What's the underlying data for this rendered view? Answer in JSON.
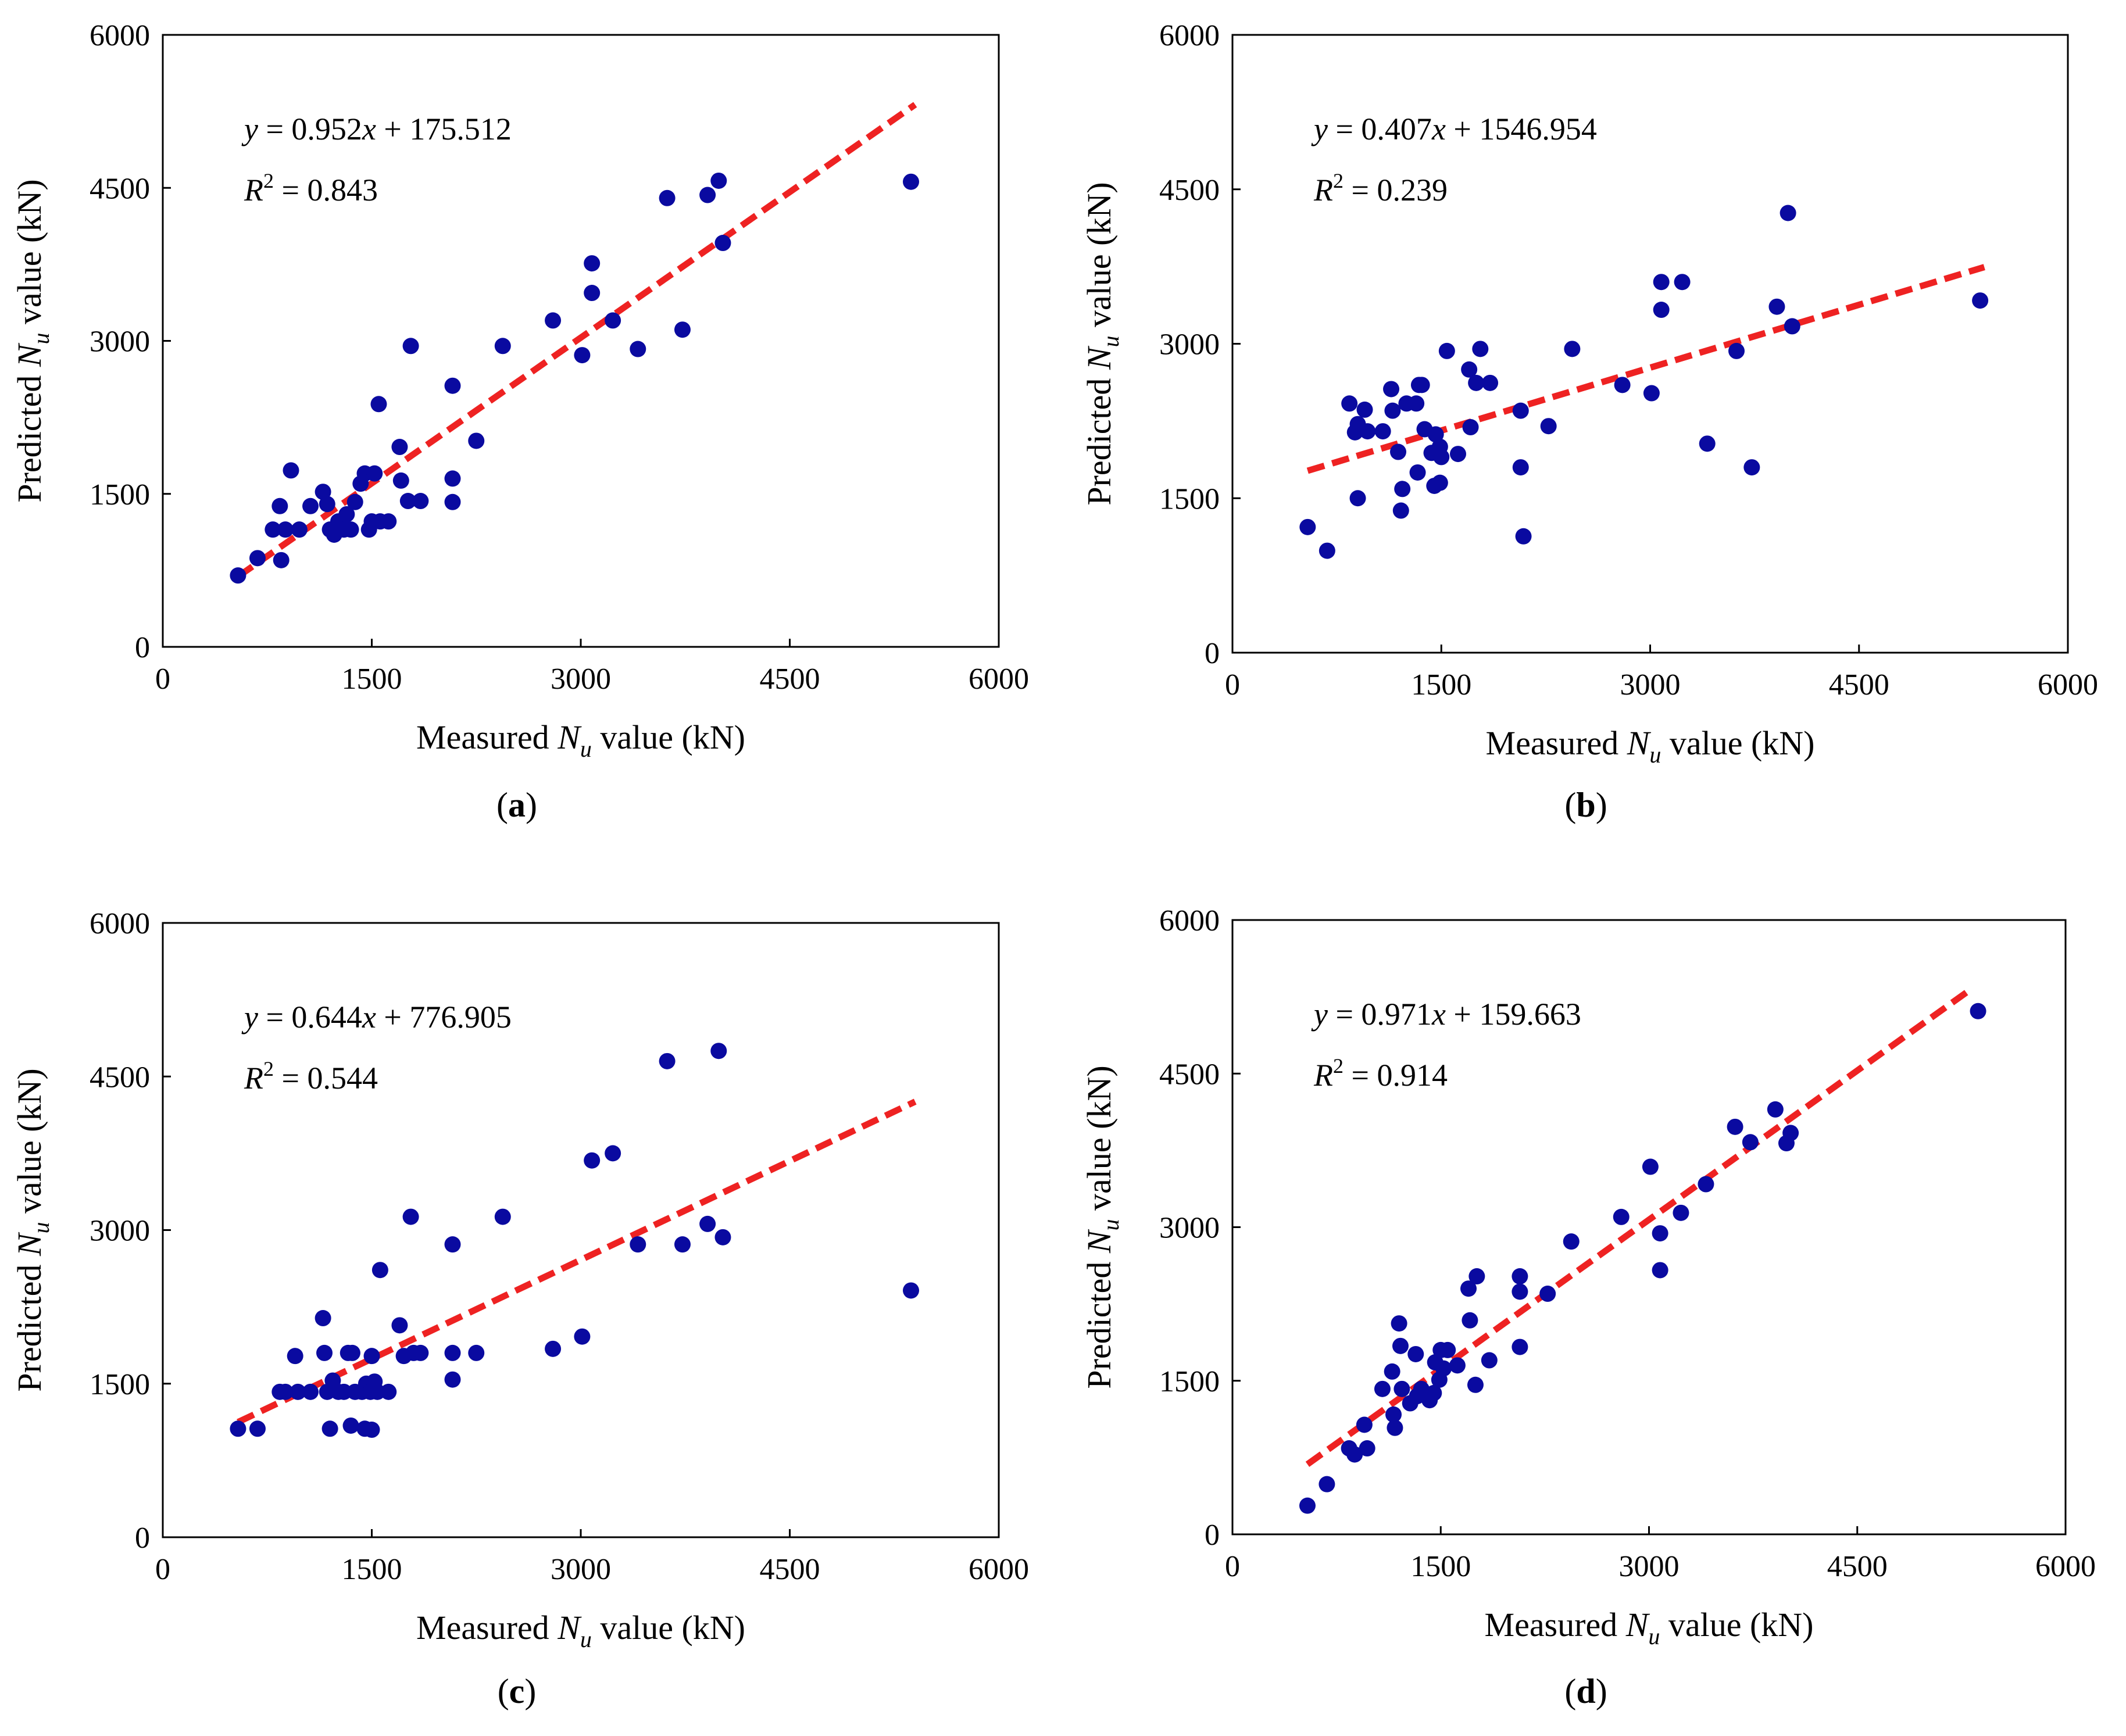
{
  "chart_data": [
    {
      "type": "scatter",
      "panel": "(a)",
      "panel_letter": "a",
      "xlabel_prefix": "Measured ",
      "ylabel_prefix": "Predicted ",
      "var_main": "N",
      "var_sub": "u",
      "label_suffix": " value (kN)",
      "xlim": [
        0,
        6000
      ],
      "ylim": [
        0,
        6000
      ],
      "xticks": [
        "0",
        "1500",
        "3000",
        "4500",
        "6000"
      ],
      "yticks": [
        "0",
        "1500",
        "3000",
        "4500",
        "6000"
      ],
      "grid": false,
      "marker_color": "#0a0aa0",
      "line_color": "#ee2222",
      "equation": {
        "y": "y",
        "eq": " = 0.952",
        "x": "x",
        "rest": " + 175.512"
      },
      "r2": {
        "R": "R",
        "sup": "2",
        "val": " = 0.843"
      },
      "fit": {
        "slope": 0.952,
        "intercept": 175.512,
        "x_range": [
          540,
          5400
        ]
      },
      "points": [
        [
          540,
          700
        ],
        [
          680,
          870
        ],
        [
          790,
          1150
        ],
        [
          840,
          1380
        ],
        [
          850,
          850
        ],
        [
          880,
          1150
        ],
        [
          920,
          1730
        ],
        [
          980,
          1150
        ],
        [
          1060,
          1380
        ],
        [
          1150,
          1520
        ],
        [
          1180,
          1400
        ],
        [
          1200,
          1150
        ],
        [
          1230,
          1100
        ],
        [
          1260,
          1230
        ],
        [
          1300,
          1150
        ],
        [
          1320,
          1300
        ],
        [
          1350,
          1150
        ],
        [
          1380,
          1420
        ],
        [
          1420,
          1600
        ],
        [
          1450,
          1700
        ],
        [
          1480,
          1150
        ],
        [
          1500,
          1230
        ],
        [
          1520,
          1700
        ],
        [
          1550,
          2380
        ],
        [
          1560,
          1230
        ],
        [
          1620,
          1230
        ],
        [
          1700,
          1960
        ],
        [
          1710,
          1630
        ],
        [
          1760,
          1430
        ],
        [
          1780,
          2950
        ],
        [
          1850,
          1430
        ],
        [
          2080,
          1650
        ],
        [
          2080,
          1420
        ],
        [
          2080,
          2560
        ],
        [
          2250,
          2020
        ],
        [
          2440,
          2950
        ],
        [
          2800,
          3200
        ],
        [
          3010,
          2860
        ],
        [
          3080,
          3470
        ],
        [
          3080,
          3760
        ],
        [
          3230,
          3200
        ],
        [
          3410,
          2920
        ],
        [
          3620,
          4400
        ],
        [
          3730,
          3110
        ],
        [
          3910,
          4430
        ],
        [
          3990,
          4570
        ],
        [
          4020,
          3960
        ],
        [
          5370,
          4560
        ]
      ]
    },
    {
      "type": "scatter",
      "panel": "(b)",
      "panel_letter": "b",
      "xlabel_prefix": "Measured ",
      "ylabel_prefix": "Predicted ",
      "var_main": "N",
      "var_sub": "u",
      "label_suffix": " value (kN)",
      "xlim": [
        0,
        6000
      ],
      "ylim": [
        0,
        6000
      ],
      "xticks": [
        "0",
        "1500",
        "3000",
        "4500",
        "6000"
      ],
      "yticks": [
        "0",
        "1500",
        "3000",
        "4500",
        "6000"
      ],
      "grid": false,
      "marker_color": "#0a0aa0",
      "line_color": "#ee2222",
      "equation": {
        "y": "y",
        "eq": " = 0.407",
        "x": "x",
        "rest": " + 1546.954"
      },
      "r2": {
        "R": "R",
        "sup": "2",
        "val": " = 0.239"
      },
      "fit": {
        "slope": 0.407,
        "intercept": 1546.954,
        "x_range": [
          540,
          5400
        ]
      },
      "points": [
        [
          540,
          1220
        ],
        [
          680,
          990
        ],
        [
          840,
          2420
        ],
        [
          880,
          2140
        ],
        [
          900,
          2220
        ],
        [
          900,
          1500
        ],
        [
          950,
          2360
        ],
        [
          970,
          2150
        ],
        [
          1080,
          2150
        ],
        [
          1140,
          2560
        ],
        [
          1150,
          2350
        ],
        [
          1190,
          1950
        ],
        [
          1210,
          1380
        ],
        [
          1220,
          1590
        ],
        [
          1250,
          2420
        ],
        [
          1320,
          2420
        ],
        [
          1330,
          1750
        ],
        [
          1340,
          2600
        ],
        [
          1360,
          2600
        ],
        [
          1380,
          2170
        ],
        [
          1430,
          1940
        ],
        [
          1450,
          1620
        ],
        [
          1460,
          2120
        ],
        [
          1490,
          1650
        ],
        [
          1490,
          2000
        ],
        [
          1500,
          1900
        ],
        [
          1540,
          2930
        ],
        [
          1620,
          1930
        ],
        [
          1700,
          2750
        ],
        [
          1710,
          2190
        ],
        [
          1750,
          2620
        ],
        [
          1780,
          2950
        ],
        [
          1850,
          2620
        ],
        [
          2070,
          2350
        ],
        [
          2070,
          1800
        ],
        [
          2090,
          1130
        ],
        [
          2270,
          2200
        ],
        [
          2440,
          2950
        ],
        [
          2800,
          2600
        ],
        [
          3010,
          2520
        ],
        [
          3080,
          3330
        ],
        [
          3080,
          3600
        ],
        [
          3230,
          3600
        ],
        [
          3410,
          2030
        ],
        [
          3620,
          2930
        ],
        [
          3730,
          1800
        ],
        [
          3910,
          3360
        ],
        [
          3990,
          4270
        ],
        [
          4020,
          3170
        ],
        [
          5370,
          3420
        ]
      ]
    },
    {
      "type": "scatter",
      "panel": "(c)",
      "panel_letter": "c",
      "xlabel_prefix": "Measured ",
      "ylabel_prefix": "Predicted ",
      "var_main": "N",
      "var_sub": "u",
      "label_suffix": " value (kN)",
      "xlim": [
        0,
        6000
      ],
      "ylim": [
        0,
        6000
      ],
      "xticks": [
        "0",
        "1500",
        "3000",
        "4500",
        "6000"
      ],
      "yticks": [
        "0",
        "1500",
        "3000",
        "4500",
        "6000"
      ],
      "grid": false,
      "marker_color": "#0a0aa0",
      "line_color": "#ee2222",
      "equation": {
        "y": "y",
        "eq": " = 0.644",
        "x": "x",
        "rest": " + 776.905"
      },
      "r2": {
        "R": "R",
        "sup": "2",
        "val": " = 0.544"
      },
      "fit": {
        "slope": 0.644,
        "intercept": 776.905,
        "x_range": [
          540,
          5400
        ]
      },
      "points": [
        [
          540,
          1060
        ],
        [
          680,
          1060
        ],
        [
          840,
          1420
        ],
        [
          880,
          1420
        ],
        [
          950,
          1770
        ],
        [
          970,
          1420
        ],
        [
          1060,
          1420
        ],
        [
          1150,
          2140
        ],
        [
          1160,
          1800
        ],
        [
          1180,
          1420
        ],
        [
          1200,
          1060
        ],
        [
          1220,
          1530
        ],
        [
          1260,
          1420
        ],
        [
          1300,
          1420
        ],
        [
          1330,
          1800
        ],
        [
          1350,
          1090
        ],
        [
          1360,
          1800
        ],
        [
          1380,
          1420
        ],
        [
          1430,
          1420
        ],
        [
          1450,
          1060
        ],
        [
          1460,
          1500
        ],
        [
          1490,
          1420
        ],
        [
          1500,
          1050
        ],
        [
          1500,
          1770
        ],
        [
          1520,
          1520
        ],
        [
          1540,
          1420
        ],
        [
          1560,
          2610
        ],
        [
          1620,
          1420
        ],
        [
          1700,
          2070
        ],
        [
          1730,
          1770
        ],
        [
          1780,
          3130
        ],
        [
          1800,
          1800
        ],
        [
          1850,
          1800
        ],
        [
          2080,
          2860
        ],
        [
          2080,
          1800
        ],
        [
          2080,
          1540
        ],
        [
          2250,
          1800
        ],
        [
          2440,
          3130
        ],
        [
          2800,
          1840
        ],
        [
          3010,
          1960
        ],
        [
          3080,
          3680
        ],
        [
          3230,
          3750
        ],
        [
          3410,
          2860
        ],
        [
          3620,
          4650
        ],
        [
          3730,
          2860
        ],
        [
          3910,
          3060
        ],
        [
          3990,
          4750
        ],
        [
          4020,
          2930
        ],
        [
          5370,
          2410
        ]
      ]
    },
    {
      "type": "scatter",
      "panel": "(d)",
      "panel_letter": "d",
      "xlabel_prefix": "Measured ",
      "ylabel_prefix": "Predicted ",
      "var_main": "N",
      "var_sub": "u",
      "label_suffix": " value (kN)",
      "xlim": [
        0,
        6000
      ],
      "ylim": [
        0,
        6000
      ],
      "xticks": [
        "0",
        "1500",
        "3000",
        "4500",
        "6000"
      ],
      "yticks": [
        "0",
        "1500",
        "3000",
        "4500",
        "6000"
      ],
      "grid": false,
      "marker_color": "#0a0aa0",
      "line_color": "#ee2222",
      "equation": {
        "y": "y",
        "eq": " = 0.971",
        "x": "x",
        "rest": " + 159.663"
      },
      "r2": {
        "R": "R",
        "sup": "2",
        "val": " = 0.914"
      },
      "fit": {
        "slope": 0.971,
        "intercept": 159.663,
        "x_range": [
          540,
          5300
        ]
      },
      "points": [
        [
          540,
          280
        ],
        [
          680,
          490
        ],
        [
          840,
          840
        ],
        [
          880,
          780
        ],
        [
          950,
          1070
        ],
        [
          970,
          840
        ],
        [
          1080,
          1420
        ],
        [
          1150,
          1590
        ],
        [
          1160,
          1170
        ],
        [
          1170,
          1040
        ],
        [
          1200,
          2060
        ],
        [
          1210,
          1840
        ],
        [
          1220,
          1420
        ],
        [
          1280,
          1280
        ],
        [
          1320,
          1760
        ],
        [
          1330,
          1350
        ],
        [
          1360,
          1420
        ],
        [
          1420,
          1310
        ],
        [
          1450,
          1380
        ],
        [
          1460,
          1680
        ],
        [
          1490,
          1510
        ],
        [
          1500,
          1800
        ],
        [
          1520,
          1620
        ],
        [
          1550,
          1800
        ],
        [
          1620,
          1650
        ],
        [
          1700,
          2400
        ],
        [
          1710,
          2090
        ],
        [
          1750,
          1460
        ],
        [
          1760,
          2520
        ],
        [
          1850,
          1700
        ],
        [
          2070,
          2370
        ],
        [
          2070,
          2520
        ],
        [
          2070,
          1830
        ],
        [
          2270,
          2350
        ],
        [
          2440,
          2860
        ],
        [
          2800,
          3100
        ],
        [
          3010,
          3590
        ],
        [
          3080,
          2940
        ],
        [
          3080,
          2580
        ],
        [
          3230,
          3140
        ],
        [
          3410,
          3420
        ],
        [
          3620,
          3980
        ],
        [
          3730,
          3830
        ],
        [
          3910,
          4150
        ],
        [
          3990,
          3820
        ],
        [
          4020,
          3920
        ],
        [
          5370,
          5110
        ]
      ]
    }
  ]
}
